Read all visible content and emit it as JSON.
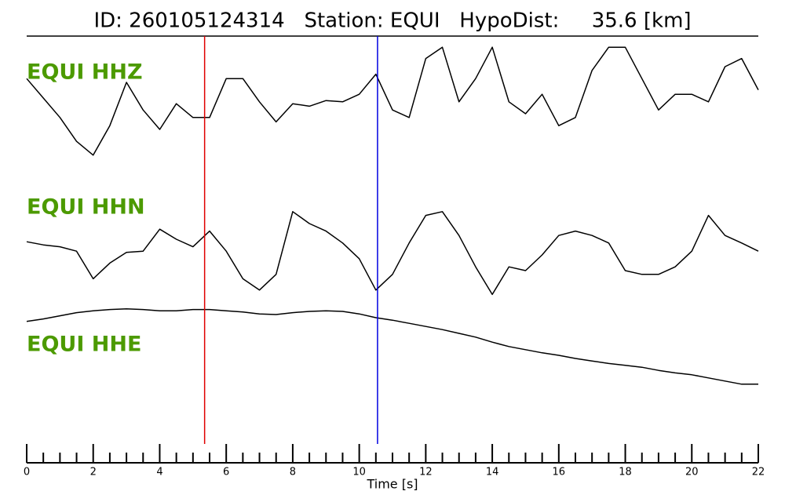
{
  "chart_data": {
    "type": "line",
    "title": "ID: 260105124314   Station: EQUI   HypoDist:     35.6 [km]",
    "xlabel": "Time [s]",
    "x": [
      0,
      0.5,
      1,
      1.5,
      2,
      2.5,
      3,
      3.5,
      4,
      4.5,
      5,
      5.5,
      6,
      6.5,
      7,
      7.5,
      8,
      8.5,
      9,
      9.5,
      10,
      10.5,
      11,
      11.5,
      12,
      12.5,
      13,
      13.5,
      14,
      14.5,
      15,
      15.5,
      16,
      16.5,
      17,
      17.5,
      18,
      18.5,
      19,
      19.5,
      20,
      20.5,
      21,
      21.5,
      22
    ],
    "xlim": [
      0,
      22
    ],
    "xticks": [
      0,
      2,
      4,
      6,
      8,
      10,
      12,
      14,
      16,
      18,
      20,
      22
    ],
    "xminorticks": [
      0.5,
      1,
      1.5,
      2.5,
      3,
      3.5,
      4.5,
      5,
      5.5,
      6.5,
      7,
      7.5,
      8.5,
      9,
      9.5,
      10.5,
      11,
      11.5,
      12.5,
      13,
      13.5,
      14.5,
      15,
      15.5,
      16.5,
      17,
      17.5,
      18.5,
      19,
      19.5,
      20.5,
      21,
      21.5
    ],
    "ylim": [
      -1,
      1
    ],
    "line_color": "#000000",
    "label_color": "#4c9a00",
    "series": [
      {
        "name": "EQUI HHZ",
        "values": [
          0.31,
          0,
          -0.31,
          -0.69,
          -0.91,
          -0.44,
          0.25,
          -0.19,
          -0.5,
          -0.09,
          -0.31,
          -0.31,
          0.31,
          0.31,
          -0.06,
          -0.38,
          -0.09,
          -0.13,
          -0.04,
          -0.06,
          0.06,
          0.38,
          -0.19,
          -0.31,
          0.63,
          0.81,
          -0.06,
          0.31,
          0.81,
          -0.06,
          -0.25,
          0.06,
          -0.44,
          -0.31,
          0.44,
          0.81,
          0.81,
          0.31,
          -0.19,
          0.06,
          0.06,
          -0.06,
          0.5,
          0.63,
          0.13
        ]
      },
      {
        "name": "EQUI HHN",
        "values": [
          0.21,
          0.16,
          0.13,
          0.06,
          -0.38,
          -0.13,
          0.04,
          0.06,
          0.41,
          0.25,
          0.13,
          0.38,
          0.06,
          -0.38,
          -0.56,
          -0.31,
          0.69,
          0.5,
          0.38,
          0.19,
          -0.06,
          -0.56,
          -0.31,
          0.19,
          0.63,
          0.69,
          0.31,
          -0.19,
          -0.63,
          -0.19,
          -0.25,
          0,
          0.31,
          0.38,
          0.31,
          0.19,
          -0.25,
          -0.31,
          -0.31,
          -0.19,
          0.06,
          0.63,
          0.31,
          0.19,
          0.06
        ]
      },
      {
        "name": "EQUI HHE",
        "values": [
          0.44,
          0.48,
          0.53,
          0.58,
          0.61,
          0.63,
          0.64,
          0.63,
          0.61,
          0.61,
          0.63,
          0.63,
          0.61,
          0.59,
          0.56,
          0.55,
          0.58,
          0.6,
          0.61,
          0.6,
          0.56,
          0.5,
          0.46,
          0.41,
          0.36,
          0.31,
          0.25,
          0.19,
          0.11,
          0.04,
          -0.01,
          -0.06,
          -0.1,
          -0.15,
          -0.19,
          -0.23,
          -0.26,
          -0.29,
          -0.34,
          -0.38,
          -0.41,
          -0.46,
          -0.51,
          -0.56,
          -0.56
        ]
      }
    ],
    "markers": [
      {
        "x": 5.35,
        "color": "#e00000"
      },
      {
        "x": 10.55,
        "color": "#0000e0"
      }
    ]
  }
}
